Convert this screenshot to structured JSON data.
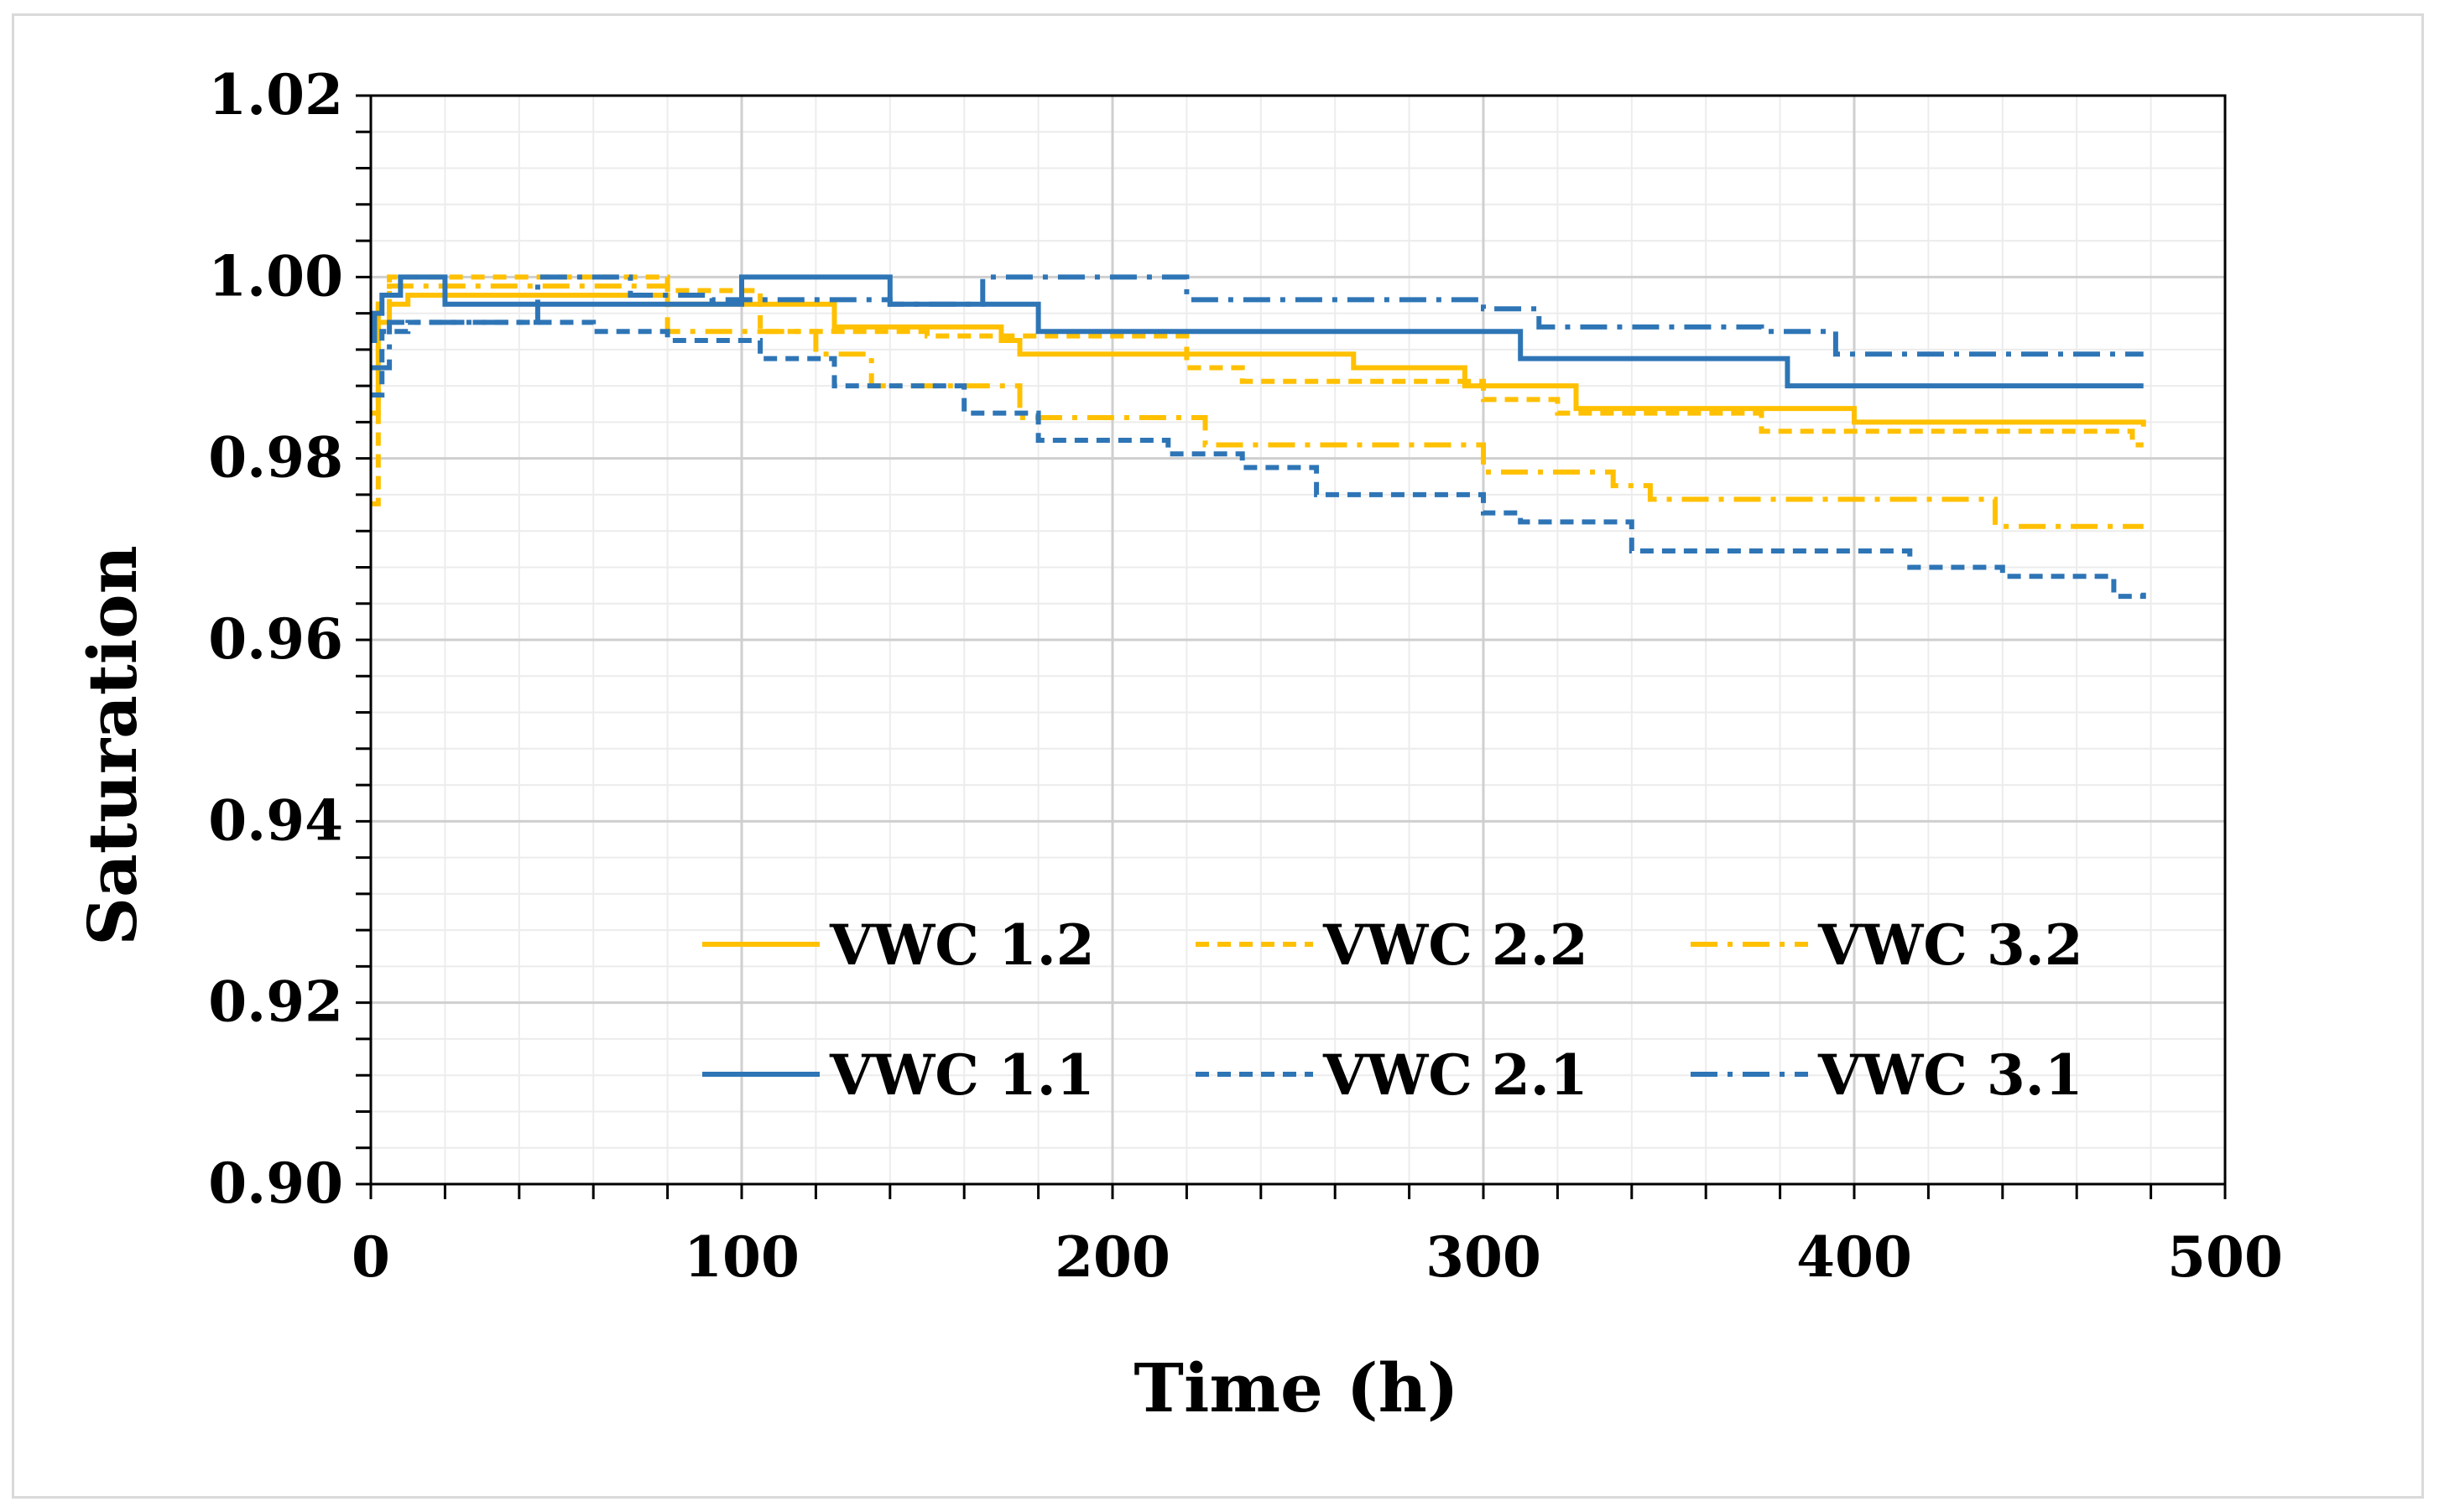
{
  "chart_data": {
    "type": "line",
    "title": "",
    "xlabel": "Time (h)",
    "ylabel": "Saturation",
    "xlim": [
      0,
      500
    ],
    "ylim": [
      0.9,
      1.02
    ],
    "x_ticks": [
      0,
      100,
      200,
      300,
      400,
      500
    ],
    "x_tick_labels": [
      "0",
      "100",
      "200",
      "300",
      "400",
      "500"
    ],
    "y_ticks": [
      0.9,
      0.92,
      0.94,
      0.96,
      0.98,
      1.0,
      1.02
    ],
    "y_tick_labels": [
      "0.90",
      "0.92",
      "0.94",
      "0.96",
      "0.98",
      "1.00",
      "1.02"
    ],
    "grid": true,
    "legend_position": "bottom-right",
    "colors": {
      "yellow": "#FFC000",
      "blue": "#2E75B6"
    },
    "series": [
      {
        "name": "VWC 1.2",
        "color": "#FFC000",
        "dash": "solid",
        "x": [
          0,
          2,
          5,
          10,
          80,
          125,
          170,
          175,
          230,
          265,
          295,
          325,
          380,
          400,
          440,
          470,
          478
        ],
        "y": [
          0.985,
          0.995,
          0.997,
          0.998,
          0.997,
          0.9945,
          0.993,
          0.9915,
          0.9915,
          0.99,
          0.988,
          0.9855,
          0.9855,
          0.984,
          0.984,
          0.984,
          0.9835
        ]
      },
      {
        "name": "VWC 2.2",
        "color": "#FFC000",
        "dash": "dashed",
        "x": [
          0,
          2,
          5,
          20,
          80,
          105,
          150,
          220,
          235,
          250,
          300,
          320,
          375,
          390,
          475,
          478
        ],
        "y": [
          0.975,
          0.998,
          1.0,
          1.0,
          0.9985,
          0.994,
          0.9935,
          0.99,
          0.9885,
          0.9885,
          0.9865,
          0.985,
          0.983,
          0.983,
          0.9815,
          0.9815
        ]
      },
      {
        "name": "VWC 3.2",
        "color": "#FFC000",
        "dash": "dashdot",
        "x": [
          0,
          2,
          5,
          80,
          120,
          135,
          160,
          175,
          210,
          225,
          290,
          300,
          335,
          345,
          400,
          430,
          438,
          478
        ],
        "y": [
          0.995,
          0.997,
          0.999,
          0.994,
          0.9915,
          0.988,
          0.988,
          0.9845,
          0.9845,
          0.9815,
          0.9815,
          0.9785,
          0.977,
          0.9755,
          0.9755,
          0.9755,
          0.9725,
          0.9725
        ]
      },
      {
        "name": "VWC 1.1",
        "color": "#2E75B6",
        "dash": "solid",
        "x": [
          0,
          1,
          3,
          8,
          20,
          100,
          140,
          180,
          300,
          310,
          330,
          380,
          382,
          478
        ],
        "y": [
          0.993,
          0.996,
          0.998,
          1.0,
          0.997,
          1.0,
          0.997,
          0.994,
          0.994,
          0.991,
          0.991,
          0.991,
          0.988,
          0.988
        ]
      },
      {
        "name": "VWC 2.1",
        "color": "#2E75B6",
        "dash": "dashed",
        "x": [
          0,
          3,
          10,
          60,
          80,
          105,
          125,
          160,
          180,
          215,
          235,
          255,
          300,
          310,
          340,
          390,
          415,
          440,
          470,
          478
        ],
        "y": [
          0.987,
          0.994,
          0.995,
          0.994,
          0.993,
          0.991,
          0.988,
          0.985,
          0.982,
          0.9805,
          0.979,
          0.976,
          0.974,
          0.973,
          0.9698,
          0.9698,
          0.968,
          0.967,
          0.9648,
          0.9652
        ]
      },
      {
        "name": "VWC 3.1",
        "color": "#2E75B6",
        "dash": "dashdot",
        "x": [
          0,
          5,
          45,
          70,
          92,
          140,
          165,
          220,
          300,
          315,
          375,
          395,
          478
        ],
        "y": [
          0.99,
          0.995,
          1.0,
          0.998,
          0.9975,
          0.997,
          1.0,
          0.9975,
          0.9965,
          0.9945,
          0.994,
          0.9915,
          0.9915
        ]
      }
    ]
  }
}
